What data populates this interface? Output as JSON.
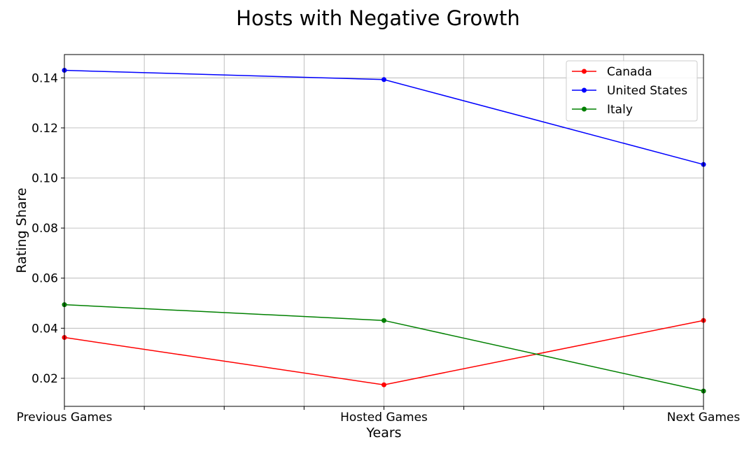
{
  "chart_data": {
    "type": "line",
    "title": "Hosts with Negative Growth",
    "xlabel": "Years",
    "ylabel": "Rating Share",
    "categories": [
      "Previous Games",
      "Hosted Games",
      "Next Games"
    ],
    "minor_x_ticks": 8,
    "ylim": [
      0.0088,
      0.1493
    ],
    "yticks": [
      0.02,
      0.04,
      0.06,
      0.08,
      0.1,
      0.12,
      0.14
    ],
    "ytick_labels": [
      "0.02",
      "0.04",
      "0.06",
      "0.08",
      "0.10",
      "0.12",
      "0.14"
    ],
    "grid": true,
    "legend_position": "top-right",
    "series": [
      {
        "name": "Canada",
        "color": "#ff0000",
        "values": [
          0.0363,
          0.0174,
          0.0431
        ]
      },
      {
        "name": "United States",
        "color": "#0000ff",
        "values": [
          0.143,
          0.1393,
          0.1054
        ]
      },
      {
        "name": "Italy",
        "color": "#008000",
        "values": [
          0.0494,
          0.0431,
          0.0149
        ]
      }
    ]
  }
}
